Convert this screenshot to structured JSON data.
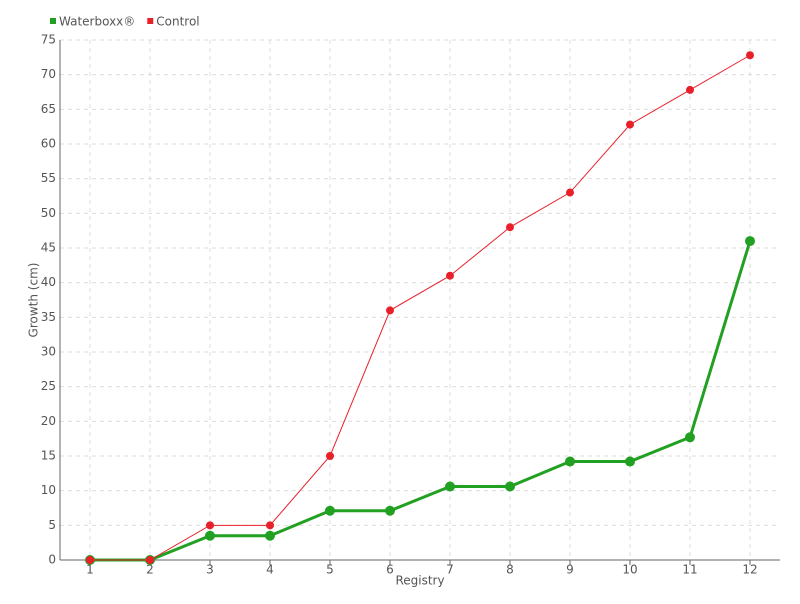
{
  "chart_data": {
    "type": "line",
    "x_label": "Registry",
    "y_label": "Growth (cm)",
    "categories": [
      "1",
      "2",
      "3",
      "4",
      "5",
      "6",
      "7",
      "8",
      "9",
      "10",
      "11",
      "12"
    ],
    "series": [
      {
        "name": "Waterboxx®",
        "color": "#22a022",
        "values": [
          0,
          0,
          3.5,
          3.5,
          7.1,
          7.1,
          10.6,
          10.6,
          14.2,
          14.2,
          17.7,
          46
        ]
      },
      {
        "name": "Control",
        "color": "#e8202a",
        "values": [
          0,
          0,
          5,
          5,
          15,
          36,
          41,
          48,
          53,
          62.8,
          67.8,
          72.8
        ]
      }
    ],
    "ylim": [
      0,
      75
    ],
    "yticks": [
      0,
      5,
      10,
      15,
      20,
      25,
      30,
      35,
      40,
      45,
      50,
      55,
      60,
      65,
      70,
      75
    ],
    "grid": true,
    "legend": "top-left"
  }
}
